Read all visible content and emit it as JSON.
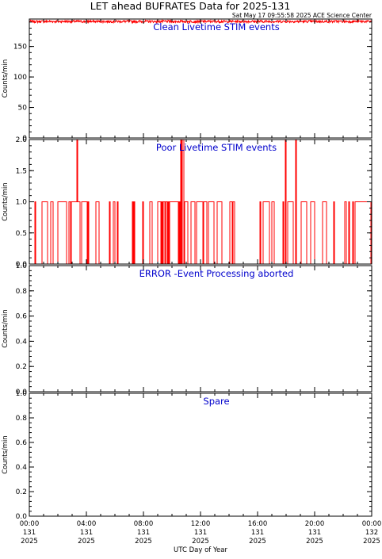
{
  "page": {
    "title": "LET ahead BUFRATES Data for 2025-131",
    "timestamp": "Sat May 17 09:55:58 2025 ACE Science Center",
    "xlabel": "UTC Day of Year"
  },
  "x_ticks": [
    {
      "time": "00:00",
      "doy": "131",
      "year": "2025"
    },
    {
      "time": "04:00",
      "doy": "131",
      "year": "2025"
    },
    {
      "time": "08:00",
      "doy": "131",
      "year": "2025"
    },
    {
      "time": "12:00",
      "doy": "131",
      "year": "2025"
    },
    {
      "time": "16:00",
      "doy": "131",
      "year": "2025"
    },
    {
      "time": "20:00",
      "doy": "131",
      "year": "2025"
    },
    {
      "time": "00:00",
      "doy": "132",
      "year": "2025"
    }
  ],
  "colors": {
    "series": "#ff0000",
    "panel_title": "#0000cc",
    "axes": "#000000"
  },
  "chart_data": [
    {
      "type": "line",
      "title": "Clean Livetime STIM events",
      "ylabel": "Counts/min",
      "ylim": [
        0,
        195
      ],
      "yticks": [
        0,
        50,
        100,
        150
      ],
      "xlim": [
        0,
        24
      ],
      "series": [
        {
          "mode": "noisy_band",
          "base": 191,
          "spread": 2
        }
      ]
    },
    {
      "type": "line",
      "title": "Poor Livetime STIM events",
      "ylabel": "Counts/min",
      "ylim": [
        0,
        2
      ],
      "yticks": [
        0.0,
        0.5,
        1.0,
        1.5,
        2.0
      ],
      "xlim": [
        0,
        24
      ],
      "series": [
        {
          "mode": "binary_spikes",
          "low": 0,
          "high": 1,
          "spikes_at_2": [
            3.35,
            10.6,
            10.75,
            17.95,
            18.65
          ]
        }
      ]
    },
    {
      "type": "line",
      "title": "ERROR -Event Processing aborted",
      "ylabel": "Counts/min",
      "ylim": [
        0,
        1
      ],
      "yticks": [
        0.0,
        0.2,
        0.4,
        0.6,
        0.8,
        1.0
      ],
      "xlim": [
        0,
        24
      ],
      "series": [
        {
          "mode": "constant",
          "value": 0
        }
      ]
    },
    {
      "type": "line",
      "title": "Spare",
      "ylabel": "Counts/min",
      "ylim": [
        0,
        1
      ],
      "yticks": [
        0.0,
        0.2,
        0.4,
        0.6,
        0.8,
        1.0
      ],
      "xlim": [
        0,
        24
      ],
      "series": [
        {
          "mode": "constant",
          "value": 0
        }
      ]
    }
  ]
}
